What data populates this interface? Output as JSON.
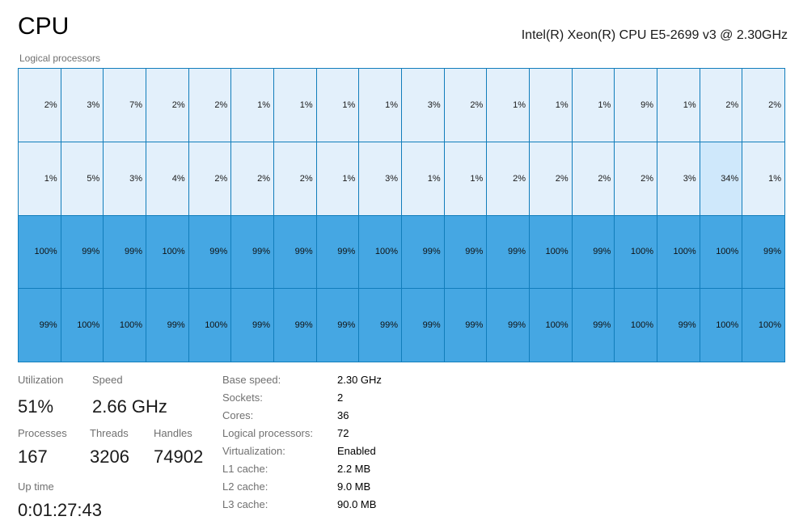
{
  "header": {
    "title": "CPU",
    "cpu_name": "Intel(R) Xeon(R) CPU E5-2699 v3 @ 2.30GHz",
    "logical_label": "Logical processors"
  },
  "grid": {
    "rows": [
      [
        "2%",
        "3%",
        "7%",
        "2%",
        "2%",
        "1%",
        "1%",
        "1%",
        "1%",
        "3%",
        "2%",
        "1%",
        "1%",
        "1%",
        "9%",
        "1%",
        "2%",
        "2%"
      ],
      [
        "1%",
        "5%",
        "3%",
        "4%",
        "2%",
        "2%",
        "2%",
        "1%",
        "3%",
        "1%",
        "1%",
        "2%",
        "2%",
        "2%",
        "2%",
        "3%",
        "34%",
        "1%"
      ],
      [
        "100%",
        "99%",
        "99%",
        "100%",
        "99%",
        "99%",
        "99%",
        "99%",
        "100%",
        "99%",
        "99%",
        "99%",
        "100%",
        "99%",
        "100%",
        "100%",
        "100%",
        "99%"
      ],
      [
        "99%",
        "100%",
        "100%",
        "99%",
        "100%",
        "99%",
        "99%",
        "99%",
        "99%",
        "99%",
        "99%",
        "99%",
        "100%",
        "99%",
        "100%",
        "99%",
        "100%",
        "100%"
      ]
    ]
  },
  "stats": {
    "utilization_label": "Utilization",
    "utilization": "51%",
    "speed_label": "Speed",
    "speed": "2.66 GHz",
    "processes_label": "Processes",
    "processes": "167",
    "threads_label": "Threads",
    "threads": "3206",
    "handles_label": "Handles",
    "handles": "74902",
    "uptime_label": "Up time",
    "uptime": "0:01:27:43"
  },
  "specs": [
    {
      "k": "Base speed:",
      "v": "2.30 GHz"
    },
    {
      "k": "Sockets:",
      "v": "2"
    },
    {
      "k": "Cores:",
      "v": "36"
    },
    {
      "k": "Logical processors:",
      "v": "72"
    },
    {
      "k": "Virtualization:",
      "v": "Enabled"
    },
    {
      "k": "L1 cache:",
      "v": "2.2 MB"
    },
    {
      "k": "L2 cache:",
      "v": "9.0 MB"
    },
    {
      "k": "L3 cache:",
      "v": "90.0 MB"
    }
  ],
  "colors": {
    "accent": "#117dbb",
    "cell_low": "#e3f0fb",
    "cell_high": "#45a7e3"
  }
}
